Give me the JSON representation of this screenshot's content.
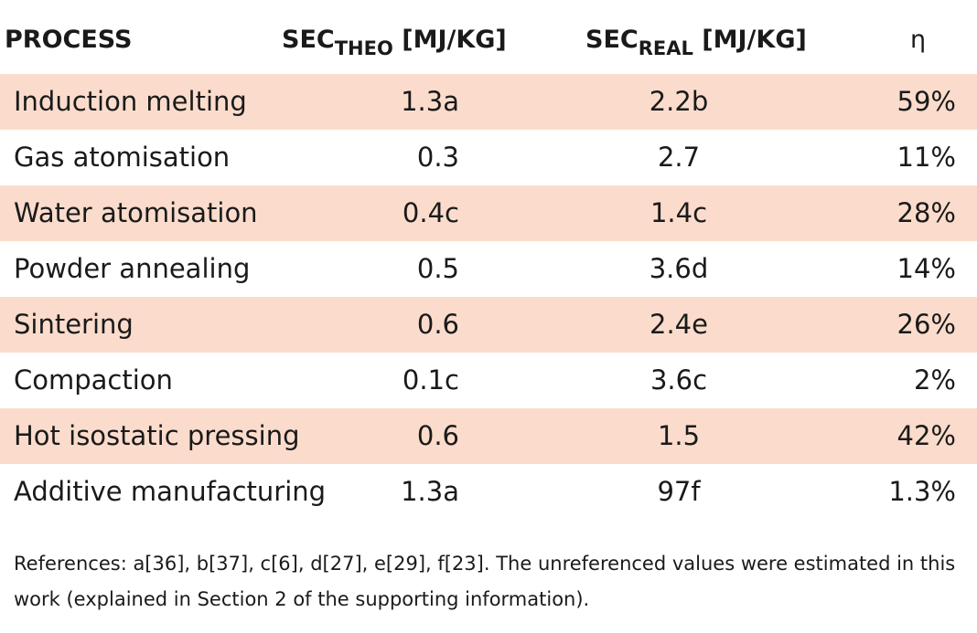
{
  "table": {
    "header": [
      {
        "text": "PROCESS"
      },
      {
        "main": "SEC",
        "sub": "THEO",
        "unit": "[MJ/KG]"
      },
      {
        "main": "SEC",
        "sub": "REAL",
        "unit": "[MJ/KG]"
      },
      {
        "text": "η"
      }
    ],
    "rows": [
      [
        "Induction melting",
        "1.3a",
        "2.2b",
        "59%"
      ],
      [
        "Gas atomisation",
        "0.3",
        "2.7",
        "11%"
      ],
      [
        "Water atomisation",
        "0.4c",
        "1.4c",
        "28%"
      ],
      [
        "Powder annealing",
        "0.5",
        "3.6d",
        "14%"
      ],
      [
        "Sintering",
        "0.6",
        "2.4e",
        "26%"
      ],
      [
        "Compaction",
        "0.1c",
        "3.6c",
        "2%"
      ],
      [
        "Hot isostatic pressing",
        "0.6",
        "1.5",
        "42%"
      ],
      [
        "Additive manufacturing",
        "1.3a",
        "97f",
        "1.3%"
      ]
    ],
    "footnote": "References: a[36], b[37], c[6], d[27], e[29], f[23]. The unreferenced values were estimated in this work (explained in Section 2 of the supporting information)."
  }
}
